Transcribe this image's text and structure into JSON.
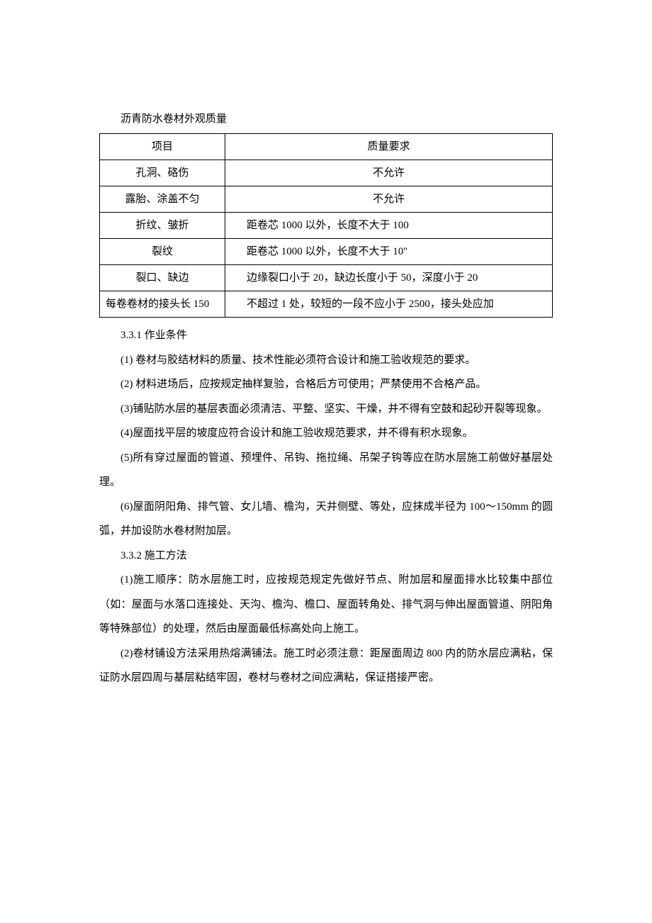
{
  "table_title": "沥青防水卷材外观质量",
  "table": {
    "header": {
      "col1": "项目",
      "col2": "质量要求"
    },
    "rows": [
      {
        "col1": "孔洞、硌伤",
        "col2": "不允许",
        "col2_align": "center"
      },
      {
        "col1": "露胎、涂盖不匀",
        "col2": "不允许",
        "col2_align": "center"
      },
      {
        "col1": "折纹、皱折",
        "col2": "距卷芯 1000 以外，长度不大于 100"
      },
      {
        "col1": "裂纹",
        "col2": "距卷芯 1000 以外，长度不大于 10''"
      },
      {
        "col1": "裂口、缺边",
        "col2": "边缘裂口小于 20，缺边长度小于 50，深度小于 20"
      },
      {
        "col1": "每卷卷材的接头长 150",
        "col2": "不超过 1 处，较短的一段不应小于 2500，接头处应加",
        "col1_align": "left"
      }
    ]
  },
  "paragraphs": [
    "3.3.1 作业条件",
    "(1) 卷材与胶结材料的质量、技术性能必须符合设计和施工验收规范的要求。",
    "(2) 材料进场后，应按规定抽样复验，合格后方可使用；严禁使用不合格产品。",
    "(3)铺贴防水层的基层表面必须清洁、平整、坚实、干燥，并不得有空鼓和起砂开裂等现象。",
    "(4)屋面找平层的坡度应符合设计和施工验收规范要求，并不得有积水现象。",
    "(5)所有穿过屋面的管道、预埋件、吊钩、拖拉绳、吊架子钩等应在防水层施工前做好基层处理。",
    "(6)屋面阴阳角、排气管、女儿墙、檐沟，天井侧壁、等处，应抹成半径为 100～150mm 的圆弧，并加设防水卷材附加层。",
    "3.3.2 施工方法",
    "(1)施工顺序：防水层施工时，应按规范规定先做好节点、附加层和屋面排水比较集中部位（如：屋面与水落口连接处、天沟、檐沟、檐口、屋面转角处、排气洞与伸出屋面管道、阴阳角等特殊部位）的处理，然后由屋面最低标高处向上施工。",
    "(2)卷材铺设方法采用热熔满铺法。施工时必须注意：距屋面周边 800 内的防水层应满粘，保证防水层四周与基层粘结牢固，卷材与卷材之间应满粘，保证搭接严密。"
  ]
}
